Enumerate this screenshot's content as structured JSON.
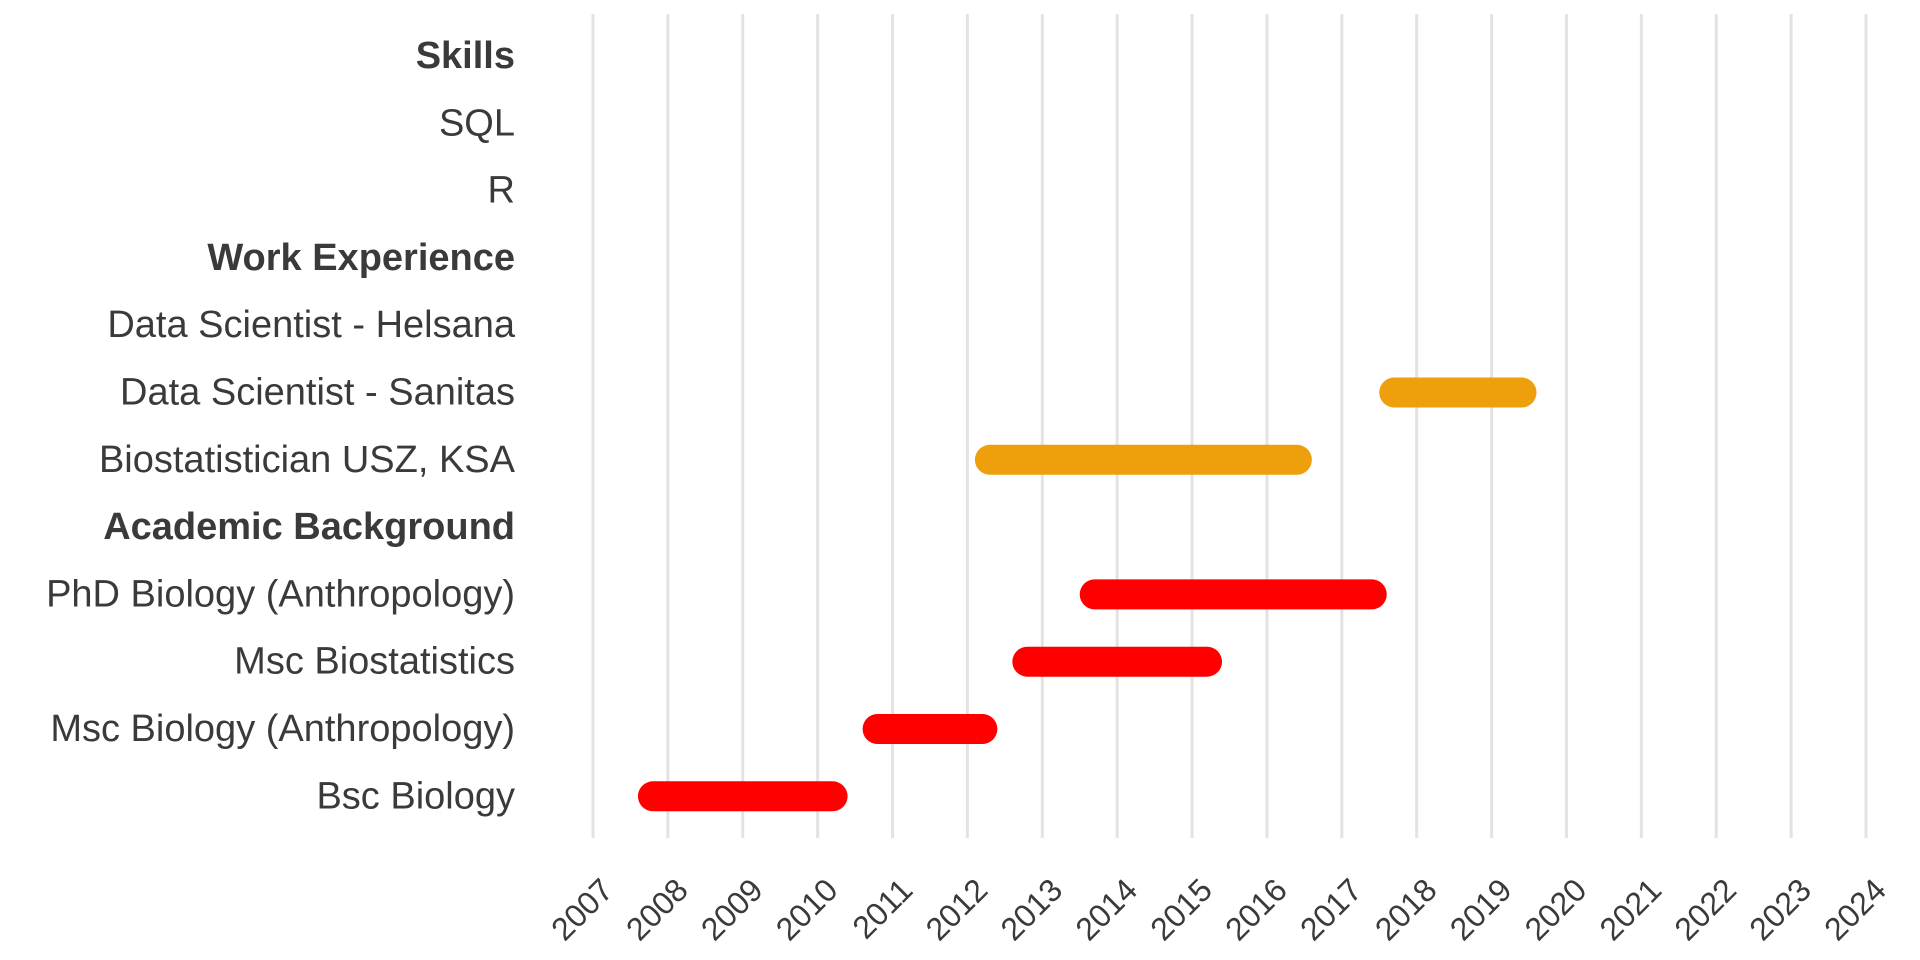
{
  "chart_data": {
    "type": "bar",
    "orientation": "horizontal-timeline",
    "title": "",
    "xlabel": "",
    "ylabel": "",
    "grid": "vertical",
    "xlim": [
      2007,
      2024
    ],
    "x_ticks": [
      "2007",
      "2008",
      "2009",
      "2010",
      "2011",
      "2012",
      "2013",
      "2014",
      "2015",
      "2016",
      "2017",
      "2018",
      "2019",
      "2020",
      "2021",
      "2022",
      "2023",
      "2024"
    ],
    "categories": [
      {
        "label": "Skills",
        "section": true
      },
      {
        "label": "SQL",
        "section": false
      },
      {
        "label": "R",
        "section": false
      },
      {
        "label": "Work Experience",
        "section": true
      },
      {
        "label": "Data Scientist - Helsana",
        "section": false
      },
      {
        "label": "Data Scientist - Sanitas",
        "section": false
      },
      {
        "label": "Biostatistician USZ, KSA",
        "section": false
      },
      {
        "label": "Academic Background",
        "section": true
      },
      {
        "label": "PhD Biology (Anthropology)",
        "section": false
      },
      {
        "label": "Msc Biostatistics",
        "section": false
      },
      {
        "label": "Msc Biology (Anthropology)",
        "section": false
      },
      {
        "label": "Bsc Biology",
        "section": false
      }
    ],
    "bars": [
      {
        "category": "Data Scientist - Sanitas",
        "start": 2017.5,
        "end": 2019.6,
        "group": "work"
      },
      {
        "category": "Biostatistician USZ, KSA",
        "start": 2012.1,
        "end": 2016.6,
        "group": "work"
      },
      {
        "category": "PhD Biology (Anthropology)",
        "start": 2013.5,
        "end": 2017.6,
        "group": "academic"
      },
      {
        "category": "Msc Biostatistics",
        "start": 2012.6,
        "end": 2015.4,
        "group": "academic"
      },
      {
        "category": "Msc Biology (Anthropology)",
        "start": 2010.6,
        "end": 2012.4,
        "group": "academic"
      },
      {
        "category": "Bsc Biology",
        "start": 2007.6,
        "end": 2010.4,
        "group": "academic"
      }
    ],
    "colors": {
      "work": "#EE9F0C",
      "academic": "#FF0000"
    }
  }
}
